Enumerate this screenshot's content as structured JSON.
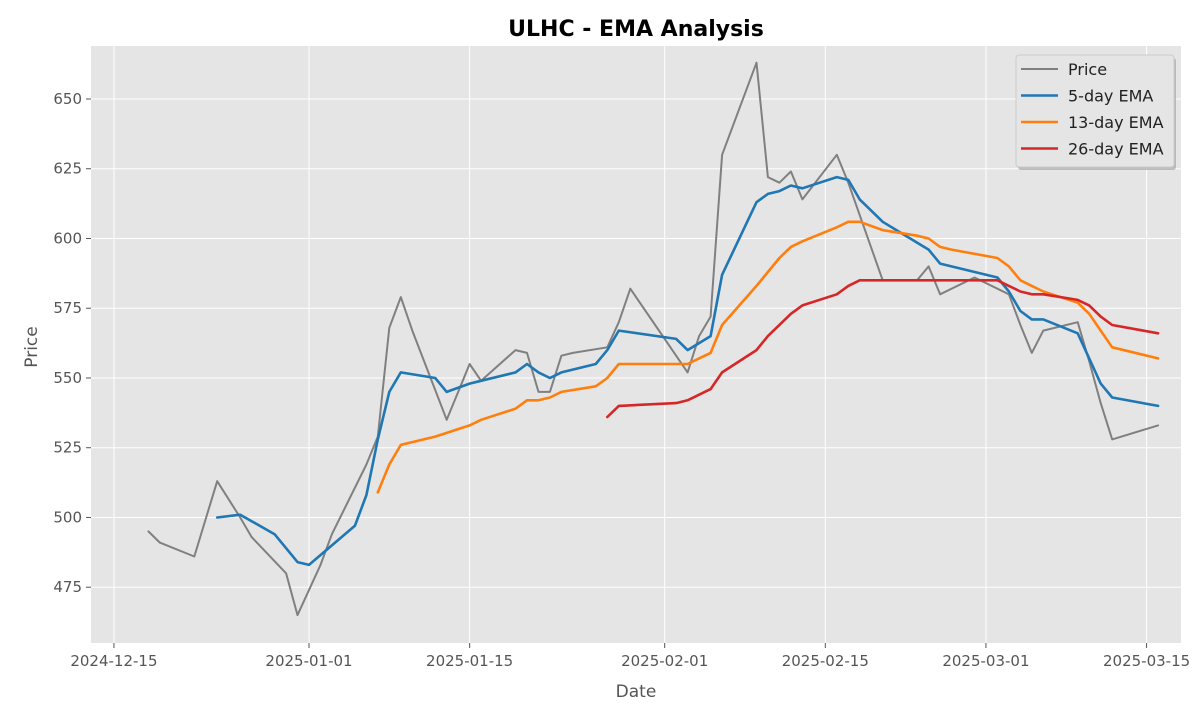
{
  "chart_data": {
    "type": "line",
    "title": "ULHC - EMA Analysis",
    "xlabel": "Date",
    "ylabel": "Price",
    "xlim": [
      "2024-12-13",
      "2025-03-18"
    ],
    "ylim": [
      455,
      669
    ],
    "x_ticks": [
      "2024-12-15",
      "2025-01-01",
      "2025-01-15",
      "2025-02-01",
      "2025-02-15",
      "2025-03-01",
      "2025-03-15"
    ],
    "y_ticks": [
      475,
      500,
      525,
      550,
      575,
      600,
      625,
      650
    ],
    "grid": true,
    "legend_position": "top-right",
    "series": [
      {
        "name": "Price",
        "color": "#808080",
        "x": [
          "2024-12-18",
          "2024-12-19",
          "2024-12-22",
          "2024-12-24",
          "2024-12-26",
          "2024-12-27",
          "2024-12-30",
          "2024-12-31",
          "2025-01-02",
          "2025-01-03",
          "2025-01-06",
          "2025-01-07",
          "2025-01-08",
          "2025-01-09",
          "2025-01-10",
          "2025-01-13",
          "2025-01-14",
          "2025-01-15",
          "2025-01-16",
          "2025-01-19",
          "2025-01-20",
          "2025-01-21",
          "2025-01-22",
          "2025-01-23",
          "2025-01-24",
          "2025-01-27",
          "2025-01-28",
          "2025-01-29",
          "2025-02-03",
          "2025-02-04",
          "2025-02-05",
          "2025-02-06",
          "2025-02-09",
          "2025-02-10",
          "2025-02-11",
          "2025-02-12",
          "2025-02-13",
          "2025-02-16",
          "2025-02-17",
          "2025-02-20",
          "2025-02-23",
          "2025-02-24",
          "2025-02-25",
          "2025-02-28",
          "2025-03-03",
          "2025-03-04",
          "2025-03-05",
          "2025-03-06",
          "2025-03-09",
          "2025-03-10",
          "2025-03-11",
          "2025-03-12",
          "2025-03-16"
        ],
        "y": [
          495,
          491,
          486,
          513,
          500,
          493,
          480,
          465,
          483,
          494,
          519,
          529,
          568,
          579,
          567,
          535,
          545,
          555,
          549,
          560,
          559,
          545,
          545,
          558,
          559,
          561,
          570,
          582,
          552,
          565,
          572,
          630,
          663,
          622,
          620,
          624,
          614,
          630,
          620,
          585,
          585,
          590,
          580,
          586,
          580,
          569,
          559,
          567,
          570,
          556,
          541,
          528,
          533
        ]
      },
      {
        "name": "5-day EMA",
        "color": "#1f77b4",
        "x": [
          "2024-12-24",
          "2024-12-26",
          "2024-12-29",
          "2024-12-31",
          "2025-01-01",
          "2025-01-05",
          "2025-01-06",
          "2025-01-07",
          "2025-01-08",
          "2025-01-09",
          "2025-01-12",
          "2025-01-13",
          "2025-01-15",
          "2025-01-16",
          "2025-01-19",
          "2025-01-20",
          "2025-01-21",
          "2025-01-22",
          "2025-01-23",
          "2025-01-26",
          "2025-01-27",
          "2025-01-28",
          "2025-02-02",
          "2025-02-03",
          "2025-02-05",
          "2025-02-06",
          "2025-02-09",
          "2025-02-10",
          "2025-02-11",
          "2025-02-12",
          "2025-02-13",
          "2025-02-16",
          "2025-02-17",
          "2025-02-18",
          "2025-02-20",
          "2025-02-24",
          "2025-02-25",
          "2025-03-02",
          "2025-03-03",
          "2025-03-04",
          "2025-03-05",
          "2025-03-06",
          "2025-03-09",
          "2025-03-10",
          "2025-03-11",
          "2025-03-12",
          "2025-03-16"
        ],
        "y": [
          500,
          501,
          494,
          484,
          483,
          497,
          508,
          528,
          545,
          552,
          550,
          545,
          548,
          549,
          552,
          555,
          552,
          550,
          552,
          555,
          560,
          567,
          564,
          560,
          565,
          587,
          613,
          616,
          617,
          619,
          618,
          622,
          621,
          614,
          606,
          596,
          591,
          586,
          581,
          574,
          571,
          571,
          566,
          557,
          548,
          543,
          540
        ]
      },
      {
        "name": "13-day EMA",
        "color": "#ff7f0e",
        "x": [
          "2025-01-07",
          "2025-01-08",
          "2025-01-09",
          "2025-01-12",
          "2025-01-15",
          "2025-01-16",
          "2025-01-19",
          "2025-01-20",
          "2025-01-21",
          "2025-01-22",
          "2025-01-23",
          "2025-01-26",
          "2025-01-27",
          "2025-01-28",
          "2025-02-02",
          "2025-02-03",
          "2025-02-04",
          "2025-02-05",
          "2025-02-06",
          "2025-02-09",
          "2025-02-10",
          "2025-02-11",
          "2025-02-12",
          "2025-02-13",
          "2025-02-16",
          "2025-02-17",
          "2025-02-18",
          "2025-02-20",
          "2025-02-23",
          "2025-02-24",
          "2025-02-25",
          "2025-02-26",
          "2025-03-02",
          "2025-03-03",
          "2025-03-04",
          "2025-03-05",
          "2025-03-06",
          "2025-03-09",
          "2025-03-10",
          "2025-03-11",
          "2025-03-12",
          "2025-03-16"
        ],
        "y": [
          509,
          519,
          526,
          529,
          533,
          535,
          539,
          542,
          542,
          543,
          545,
          547,
          550,
          555,
          555,
          555,
          557,
          559,
          569,
          583,
          588,
          593,
          597,
          599,
          604,
          606,
          606,
          603,
          601,
          600,
          597,
          596,
          593,
          590,
          585,
          583,
          581,
          577,
          573,
          567,
          561,
          557
        ]
      },
      {
        "name": "26-day EMA",
        "color": "#d62728",
        "x": [
          "2025-01-27",
          "2025-01-28",
          "2025-02-02",
          "2025-02-03",
          "2025-02-04",
          "2025-02-05",
          "2025-02-06",
          "2025-02-09",
          "2025-02-10",
          "2025-02-12",
          "2025-02-13",
          "2025-02-16",
          "2025-02-17",
          "2025-02-18",
          "2025-02-20",
          "2025-02-23",
          "2025-02-24",
          "2025-02-25",
          "2025-03-02",
          "2025-03-03",
          "2025-03-04",
          "2025-03-05",
          "2025-03-06",
          "2025-03-09",
          "2025-03-10",
          "2025-03-11",
          "2025-03-12",
          "2025-03-16"
        ],
        "y": [
          536,
          540,
          541,
          542,
          544,
          546,
          552,
          560,
          565,
          573,
          576,
          580,
          583,
          585,
          585,
          585,
          585,
          585,
          585,
          583,
          581,
          580,
          580,
          578,
          576,
          572,
          569,
          566
        ]
      }
    ]
  }
}
